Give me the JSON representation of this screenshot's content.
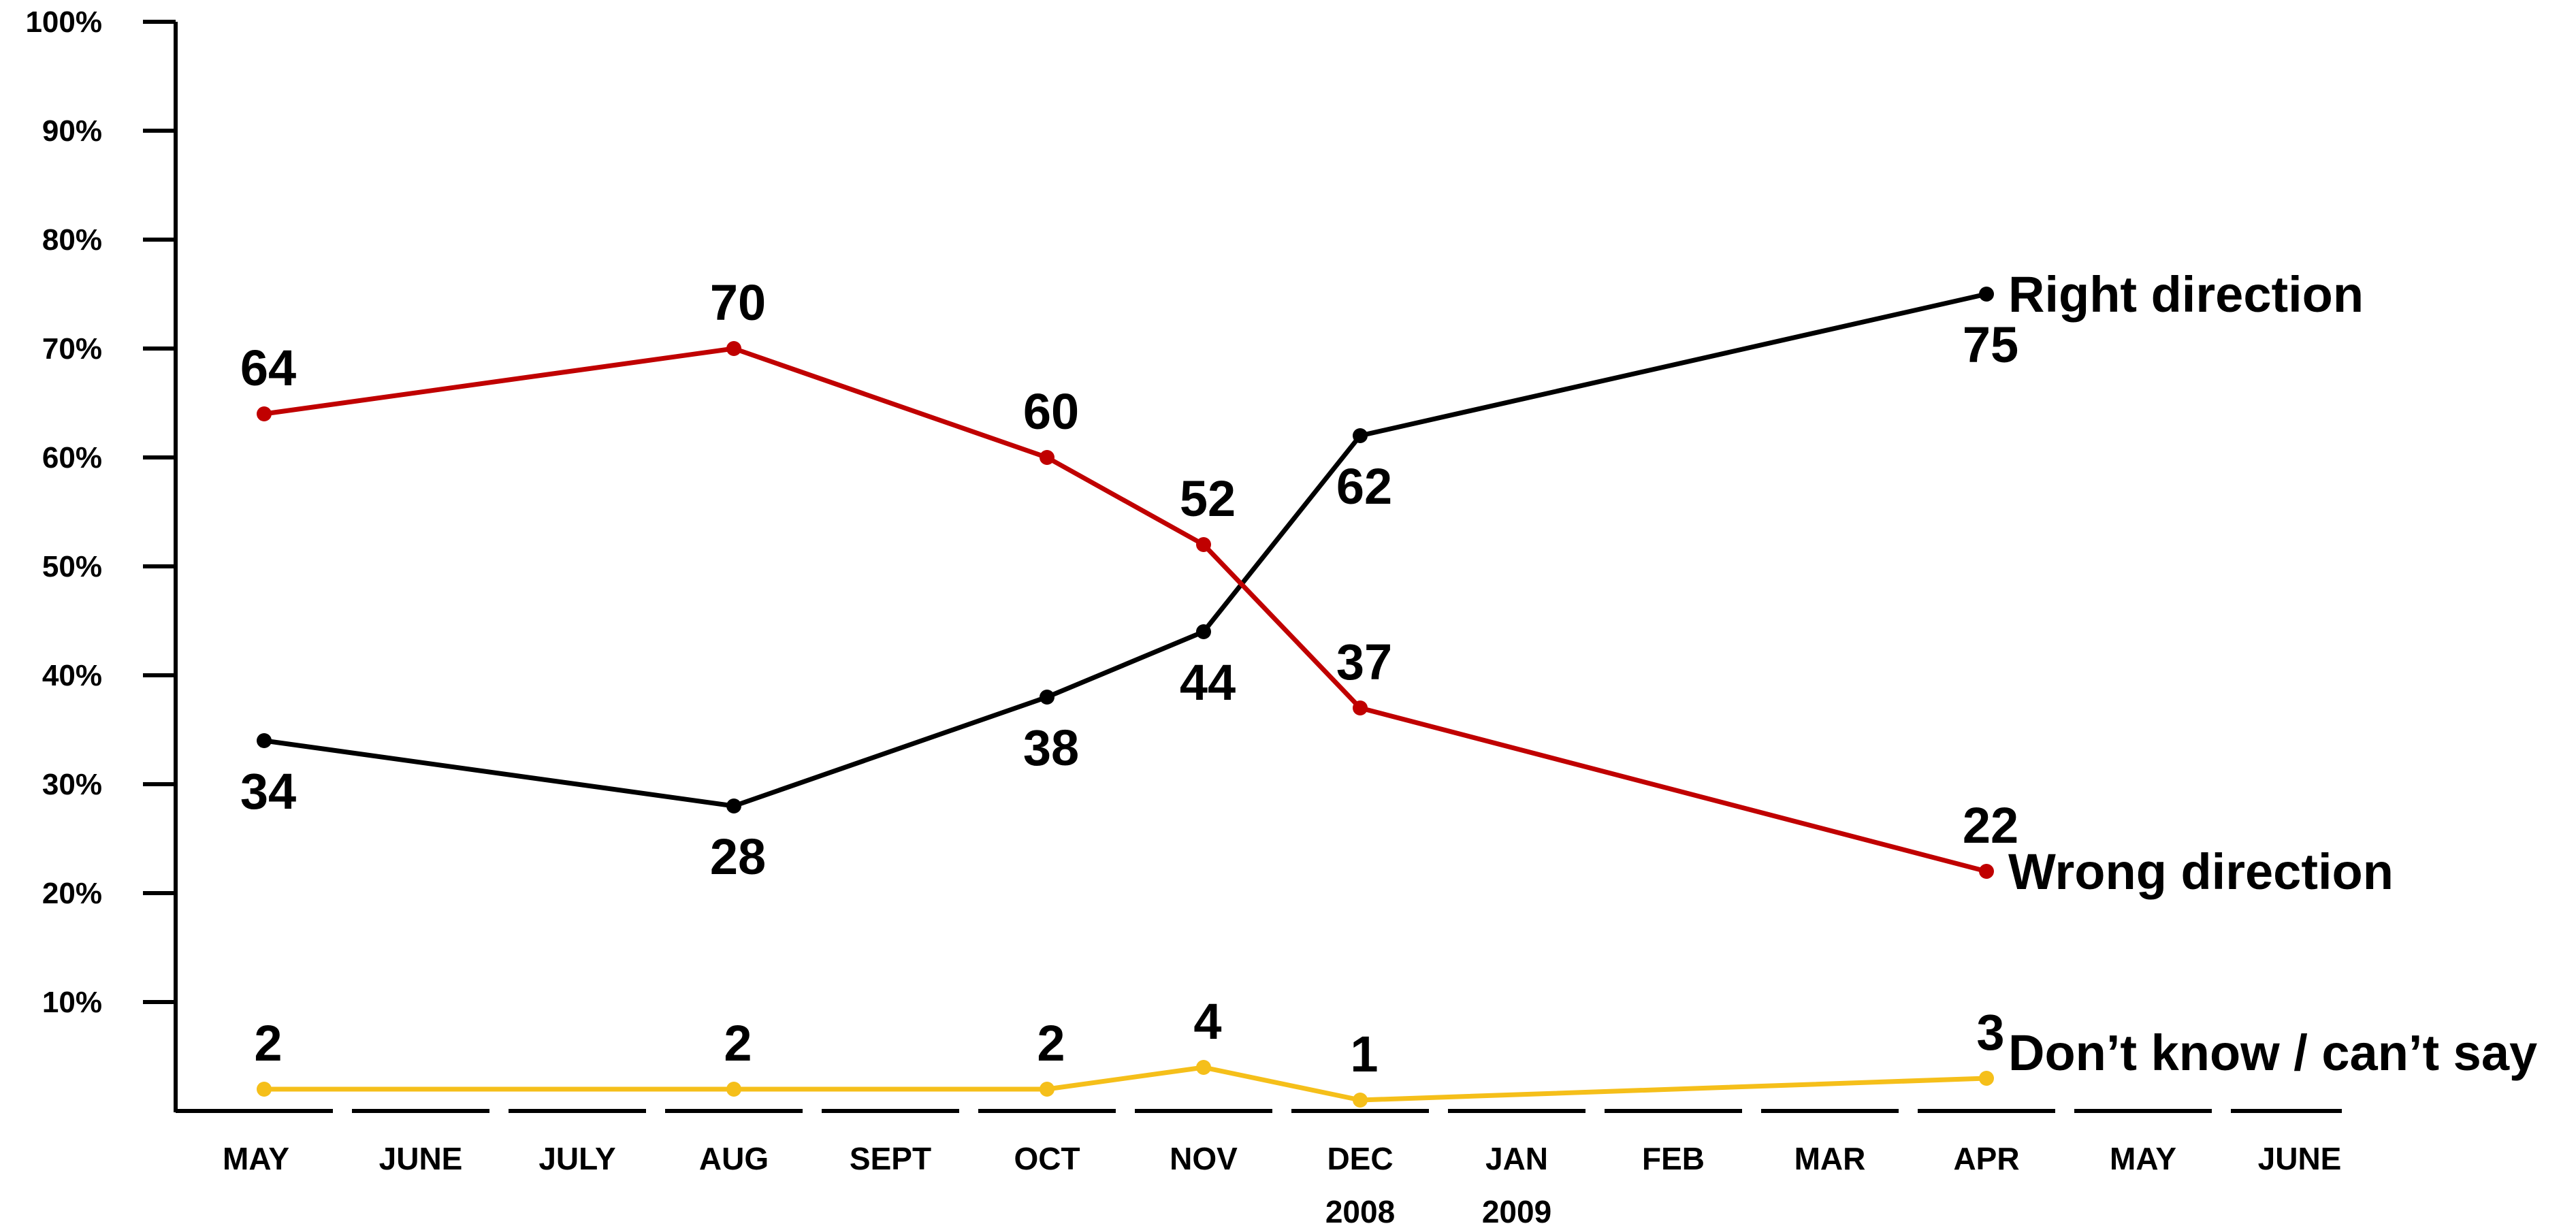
{
  "chart_data": {
    "type": "line",
    "title": "",
    "xlabel": "",
    "ylabel": "",
    "ylim": [
      0,
      100
    ],
    "grid": false,
    "legend": "direct labels at right end of each line",
    "y_ticks": [
      "10%",
      "20%",
      "30%",
      "40%",
      "50%",
      "60%",
      "70%",
      "80%",
      "90%",
      "100%"
    ],
    "categories": [
      {
        "month": "MAY",
        "year": ""
      },
      {
        "month": "JUNE",
        "year": ""
      },
      {
        "month": "JULY",
        "year": ""
      },
      {
        "month": "AUG",
        "year": ""
      },
      {
        "month": "SEPT",
        "year": ""
      },
      {
        "month": "OCT",
        "year": ""
      },
      {
        "month": "NOV",
        "year": ""
      },
      {
        "month": "DEC",
        "year": "2008"
      },
      {
        "month": "JAN",
        "year": "2009"
      },
      {
        "month": "FEB",
        "year": ""
      },
      {
        "month": "MAR",
        "year": ""
      },
      {
        "month": "APR",
        "year": ""
      },
      {
        "month": "MAY",
        "year": ""
      },
      {
        "month": "JUNE",
        "year": ""
      }
    ],
    "series": [
      {
        "name": "Right direction",
        "color": "#000000",
        "label_position": "below",
        "points": [
          {
            "category_index": 0,
            "value": 34
          },
          {
            "category_index": 3,
            "value": 28
          },
          {
            "category_index": 5,
            "value": 38
          },
          {
            "category_index": 6,
            "value": 44
          },
          {
            "category_index": 7,
            "value": 62
          },
          {
            "category_index": 11,
            "value": 75
          }
        ]
      },
      {
        "name": "Wrong direction",
        "color": "#c00000",
        "label_position": "above",
        "points": [
          {
            "category_index": 0,
            "value": 64
          },
          {
            "category_index": 3,
            "value": 70
          },
          {
            "category_index": 5,
            "value": 60
          },
          {
            "category_index": 6,
            "value": 52
          },
          {
            "category_index": 7,
            "value": 37
          },
          {
            "category_index": 11,
            "value": 22
          }
        ]
      },
      {
        "name": "Don’t know / can’t say",
        "color": "#f5bf1a",
        "label_position": "above",
        "points": [
          {
            "category_index": 0,
            "value": 2
          },
          {
            "category_index": 3,
            "value": 2
          },
          {
            "category_index": 5,
            "value": 2
          },
          {
            "category_index": 6,
            "value": 4
          },
          {
            "category_index": 7,
            "value": 1
          },
          {
            "category_index": 11,
            "value": 3
          }
        ]
      }
    ]
  }
}
